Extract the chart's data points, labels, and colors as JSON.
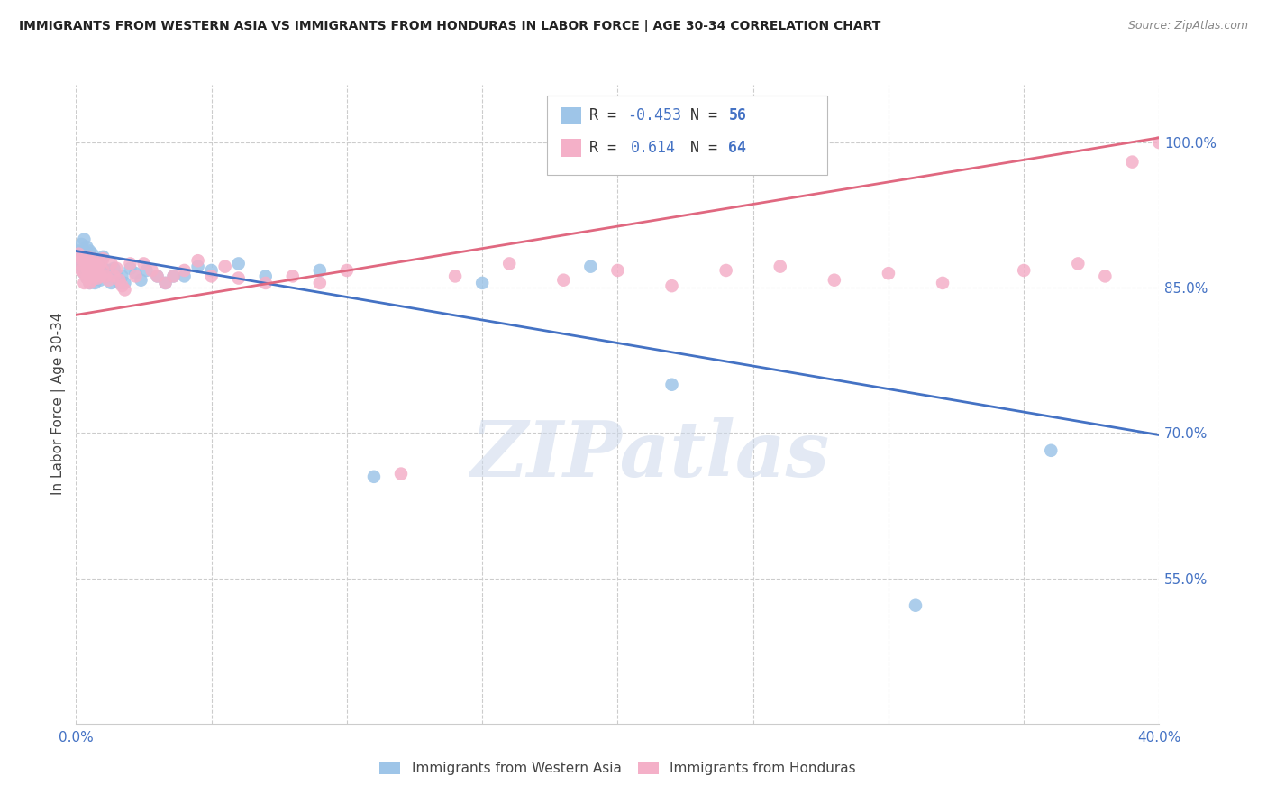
{
  "title": "IMMIGRANTS FROM WESTERN ASIA VS IMMIGRANTS FROM HONDURAS IN LABOR FORCE | AGE 30-34 CORRELATION CHART",
  "source": "Source: ZipAtlas.com",
  "ylabel": "In Labor Force | Age 30-34",
  "xlim": [
    0.0,
    0.4
  ],
  "ylim": [
    0.4,
    1.06
  ],
  "xticks": [
    0.0,
    0.05,
    0.1,
    0.15,
    0.2,
    0.25,
    0.3,
    0.35,
    0.4
  ],
  "ytick_positions": [
    0.55,
    0.7,
    0.85,
    1.0
  ],
  "ytick_labels": [
    "55.0%",
    "70.0%",
    "85.0%",
    "100.0%"
  ],
  "blue_color": "#9ec5e8",
  "pink_color": "#f4b0c8",
  "blue_line_color": "#4472C4",
  "pink_line_color": "#e06880",
  "accent_color": "#4472C4",
  "legend_R_blue": "-0.453",
  "legend_N_blue": "56",
  "legend_R_pink": "0.614",
  "legend_N_pink": "64",
  "legend_label_blue": "Immigrants from Western Asia",
  "legend_label_pink": "Immigrants from Honduras",
  "watermark": "ZIPatlas",
  "blue_scatter_x": [
    0.001,
    0.001,
    0.002,
    0.002,
    0.002,
    0.003,
    0.003,
    0.003,
    0.003,
    0.004,
    0.004,
    0.004,
    0.004,
    0.005,
    0.005,
    0.005,
    0.005,
    0.006,
    0.006,
    0.006,
    0.007,
    0.007,
    0.007,
    0.008,
    0.008,
    0.009,
    0.009,
    0.01,
    0.01,
    0.011,
    0.012,
    0.013,
    0.014,
    0.015,
    0.016,
    0.017,
    0.018,
    0.02,
    0.022,
    0.024,
    0.026,
    0.03,
    0.033,
    0.036,
    0.04,
    0.045,
    0.05,
    0.06,
    0.07,
    0.09,
    0.11,
    0.15,
    0.19,
    0.22,
    0.31,
    0.36
  ],
  "blue_scatter_y": [
    0.888,
    0.882,
    0.895,
    0.878,
    0.872,
    0.9,
    0.888,
    0.875,
    0.865,
    0.892,
    0.88,
    0.868,
    0.86,
    0.888,
    0.875,
    0.862,
    0.855,
    0.885,
    0.872,
    0.858,
    0.878,
    0.865,
    0.855,
    0.875,
    0.862,
    0.87,
    0.858,
    0.882,
    0.87,
    0.862,
    0.868,
    0.855,
    0.87,
    0.862,
    0.855,
    0.862,
    0.855,
    0.87,
    0.865,
    0.858,
    0.868,
    0.862,
    0.855,
    0.862,
    0.862,
    0.872,
    0.868,
    0.875,
    0.862,
    0.868,
    0.655,
    0.855,
    0.872,
    0.75,
    0.522,
    0.682
  ],
  "pink_scatter_x": [
    0.001,
    0.001,
    0.002,
    0.002,
    0.003,
    0.003,
    0.003,
    0.004,
    0.004,
    0.004,
    0.005,
    0.005,
    0.005,
    0.006,
    0.006,
    0.006,
    0.007,
    0.007,
    0.008,
    0.008,
    0.009,
    0.009,
    0.01,
    0.01,
    0.011,
    0.012,
    0.013,
    0.014,
    0.015,
    0.016,
    0.017,
    0.018,
    0.02,
    0.022,
    0.025,
    0.028,
    0.03,
    0.033,
    0.036,
    0.04,
    0.045,
    0.05,
    0.055,
    0.06,
    0.07,
    0.08,
    0.09,
    0.1,
    0.12,
    0.14,
    0.16,
    0.18,
    0.2,
    0.22,
    0.24,
    0.26,
    0.28,
    0.3,
    0.32,
    0.35,
    0.37,
    0.38,
    0.39,
    0.4
  ],
  "pink_scatter_y": [
    0.885,
    0.875,
    0.88,
    0.868,
    0.878,
    0.865,
    0.855,
    0.882,
    0.87,
    0.86,
    0.878,
    0.865,
    0.855,
    0.88,
    0.868,
    0.858,
    0.875,
    0.862,
    0.872,
    0.86,
    0.875,
    0.862,
    0.88,
    0.868,
    0.862,
    0.858,
    0.875,
    0.862,
    0.87,
    0.858,
    0.852,
    0.848,
    0.875,
    0.862,
    0.875,
    0.868,
    0.862,
    0.855,
    0.862,
    0.868,
    0.878,
    0.862,
    0.872,
    0.86,
    0.855,
    0.862,
    0.855,
    0.868,
    0.658,
    0.862,
    0.875,
    0.858,
    0.868,
    0.852,
    0.868,
    0.872,
    0.858,
    0.865,
    0.855,
    0.868,
    0.875,
    0.862,
    0.98,
    1.0
  ],
  "blue_trend_x": [
    0.0,
    0.4
  ],
  "blue_trend_y": [
    0.888,
    0.698
  ],
  "pink_trend_x": [
    0.0,
    0.4
  ],
  "pink_trend_y": [
    0.822,
    1.005
  ]
}
